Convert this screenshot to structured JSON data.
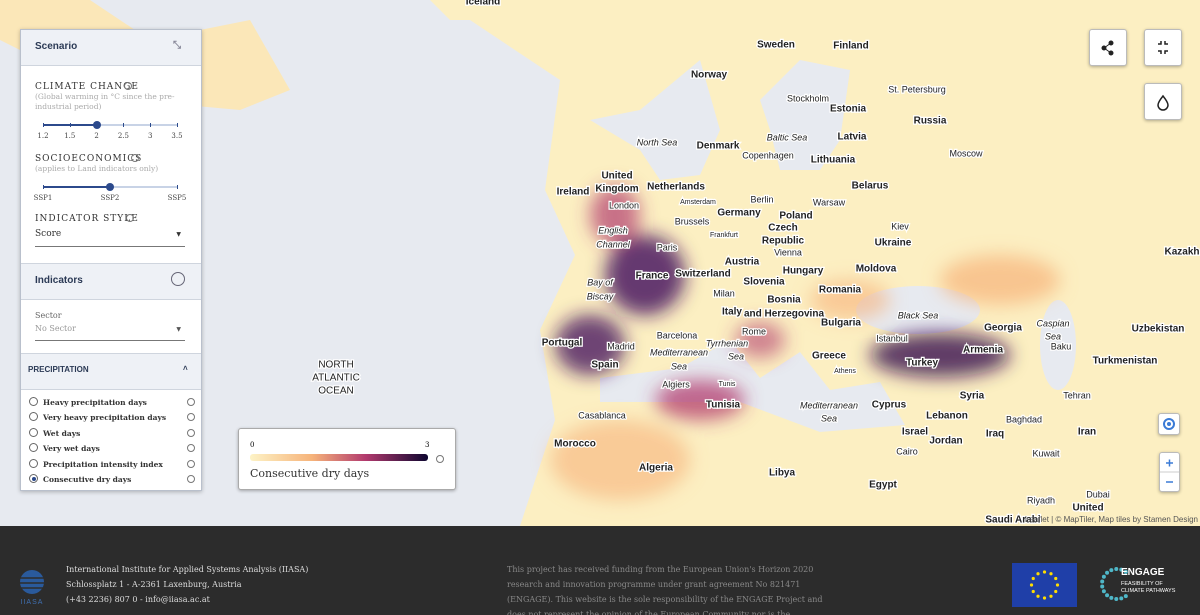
{
  "scenario_panel": {
    "title": "Scenario",
    "climate_change": {
      "label": "CLIMATE CHANGE",
      "note": "(Global warming in °C since the pre-industrial period)",
      "ticks": [
        "1.2",
        "1.5",
        "2",
        "2.5",
        "3",
        "3.5"
      ],
      "selected": 2
    },
    "socioeconomics": {
      "label": "SOCIOECONOMICS",
      "note": "(applies to Land indicators only)",
      "ticks": [
        "SSP1",
        "SSP2",
        "SSP5"
      ],
      "selected": 1
    },
    "indicator_style": {
      "label": "INDICATOR STYLE",
      "value": "Score"
    }
  },
  "indicators_panel": {
    "title": "Indicators",
    "sector_label": "Sector",
    "sector_value": "No Sector",
    "group": "PRECIPITATION",
    "options": [
      "Heavy precipitation days",
      "Very heavy precipitation days",
      "Wet days",
      "Very wet days",
      "Precipitation intensity index",
      "Consecutive dry days"
    ],
    "selected": 5
  },
  "legend": {
    "min": "0",
    "max": "3",
    "title": "Consecutive dry days"
  },
  "map_labels": [
    "Iceland",
    "Sweden",
    "Finland",
    "Norway",
    "St. Petersburg",
    "Stockholm",
    "Estonia",
    "Russia",
    "Latvia",
    "North Sea",
    "Baltic Sea",
    "Denmark",
    "Copenhagen",
    "Moscow",
    "Lithuania",
    "United",
    "Kingdom",
    "Ireland",
    "Netherlands",
    "Belarus",
    "Amsterdam",
    "Berlin",
    "London",
    "Warsaw",
    "Brussels",
    "Germany",
    "Poland",
    "English",
    "Channel",
    "Frankfurt",
    "Czech",
    "Republic",
    "Kiev",
    "Ukraine",
    "Paris",
    "Vienna",
    "Austria",
    "Hungary",
    "Moldova",
    "France",
    "Switzerland",
    "Kazakh",
    "Slovenia",
    "Bay of",
    "Biscay",
    "Milan",
    "Romania",
    "Bosnia",
    "and Herzegovina",
    "Italy",
    "Black Sea",
    "Portugal",
    "Barcelona",
    "Rome",
    "Bulgaria",
    "Georgia",
    "Caspian",
    "Sea",
    "Uzbekistan",
    "Istanbul",
    "Madrid",
    "Tyrrhenian",
    "Sea",
    "Armenia",
    "Baku",
    "Mediterranean",
    "Sea",
    "Greece",
    "Turkey",
    "Turkmenistan",
    "Spain",
    "Algiers",
    "Tunis",
    "Athens",
    "Syria",
    "Tehran",
    "Tunisia",
    "Mediterranean",
    "Sea",
    "Cyprus",
    "Lebanon",
    "Casablanca",
    "Baghdad",
    "Israel",
    "Iraq",
    "Iran",
    "Jordan",
    "Morocco",
    "Cairo",
    "Kuwait",
    "Algeria",
    "Libya",
    "Egypt",
    "Riyadh",
    "Dubai",
    "United",
    "Saudi Arabi",
    "NORTH",
    "ATLANTIC",
    "OCEAN"
  ],
  "attribution": "Leaflet | © MapTiler, Map tiles by Stamen Design",
  "footer": {
    "logo_text": "IIASA",
    "address": [
      "International Institute for Applied Systems Analysis (IIASA)",
      "Schlossplatz 1 - A-2361 Laxenburg, Austria",
      "(+43 2236) 807 0 - info@iiasa.ac.at"
    ],
    "funding": [
      "This project has received funding from the European Union's Horizon 2020",
      "research and innovation programme under grant agreement No 821471",
      "(ENGAGE). This website is the sole responsibility of the ENGAGE Project and",
      "does not represent the opinion of the European Community nor is the"
    ],
    "engage_title": "ENGAGE",
    "engage_subtitle": [
      "FEASIBILITY OF",
      "CLIMATE PATHWAYS"
    ]
  }
}
